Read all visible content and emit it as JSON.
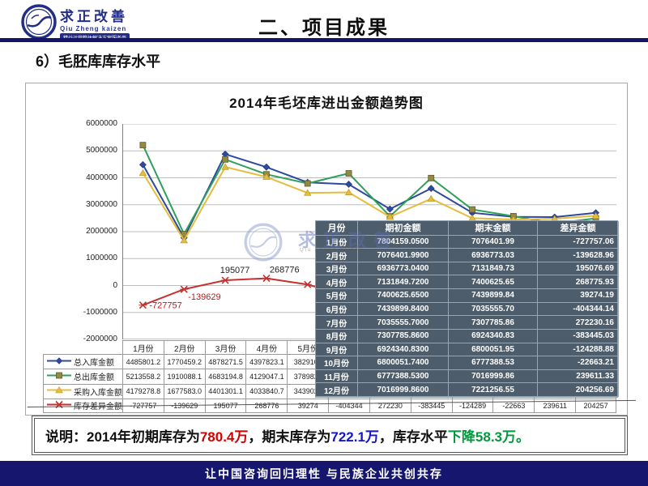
{
  "header": {
    "logo": {
      "brand": "求正改善",
      "pinyin": "Qiu Zheng kaizen",
      "tagline": "精益运营整体解决方案服务商"
    },
    "title": "二、项目成果"
  },
  "section_title": "6）毛胚库库存水平",
  "chart": {
    "title": "2014年毛坯库进出金额趋势图",
    "y_tick_labels": [
      "6000000",
      "5000000",
      "4000000",
      "3000000",
      "2000000",
      "1000000",
      "0",
      "-1000000",
      "-2000000"
    ],
    "point_labels": [
      {
        "text": "-727757",
        "color": "#cc1111"
      },
      {
        "text": "-139629",
        "color": "#cc1111"
      },
      {
        "text": "195077",
        "color": "#222222"
      },
      {
        "text": "268776",
        "color": "#222222"
      }
    ]
  },
  "chart_data": {
    "type": "line",
    "title": "2014年毛坯库进出金额趋势图",
    "categories": [
      "1月份",
      "2月份",
      "3月份",
      "4月份",
      "5月份",
      "6月份",
      "7月份",
      "8月份",
      "9月份",
      "10月份",
      "11月份",
      "12月份"
    ],
    "ylim": [
      -2000000,
      6000000
    ],
    "grid": true,
    "legend_position": "table-left",
    "series": [
      {
        "name": "总入库金额",
        "color": "#2e4a9e",
        "marker": "diamond",
        "values": [
          4485801,
          1770459,
          4878272,
          4397823,
          3829102,
          3760000,
          2840000,
          3607000,
          2700000,
          2550000,
          2540000,
          2700000
        ]
      },
      {
        "name": "总出库金额",
        "color": "#2fa05a",
        "marker": "square",
        "values": [
          5213558,
          1910088,
          4683195,
          4129047,
          3789828,
          4164000,
          2568000,
          3990000,
          2824000,
          2573000,
          2300000,
          2496000
        ]
      },
      {
        "name": "采购入库金额",
        "color": "#e6bc3c",
        "marker": "triangle",
        "values": [
          4179279,
          1677583,
          4401301,
          4033841,
          3439025,
          3460000,
          2550000,
          3220000,
          2500000,
          2450000,
          2480000,
          2590000
        ]
      },
      {
        "name": "库存差异金额",
        "color": "#c53030",
        "marker": "x",
        "values": [
          -727757,
          -139629,
          195077,
          268776,
          39274,
          -404344,
          272230,
          -383445,
          -124289,
          -22663,
          239611,
          204257
        ]
      }
    ],
    "note": "values for months 6-12 of first three series are estimated from line positions (cells hidden behind overlay table)"
  },
  "bottom_table": {
    "months": [
      "1月份",
      "2月份",
      "3月份",
      "4月份",
      "5月份",
      "6月份",
      "7月份",
      "8月份",
      "9月份",
      "10月份",
      "11月份",
      "12月份"
    ],
    "rows": [
      {
        "label": "总入库金额",
        "cells": [
          "4485801.2",
          "1770459.2",
          "4878271.5",
          "4397823.1",
          "3829102",
          "",
          "",
          "",
          "",
          "",
          "",
          ""
        ]
      },
      {
        "label": "总出库金额",
        "cells": [
          "5213558.2",
          "1910088.1",
          "4683194.8",
          "4129047.1",
          "3789828",
          "",
          "",
          "",
          "",
          "",
          "",
          ""
        ]
      },
      {
        "label": "采购入库金额",
        "cells": [
          "4179278.8",
          "1677583.0",
          "4401301.1",
          "4033840.7",
          "3439025",
          "",
          "",
          "",
          "",
          "",
          "",
          ""
        ]
      },
      {
        "label": "库存差异金额",
        "cells": [
          "-727757",
          "-139629",
          "195077",
          "268776",
          "39274",
          "-404344",
          "272230",
          "-383445",
          "-124289",
          "-22663",
          "239611",
          "204257"
        ]
      }
    ]
  },
  "overlay_table": {
    "headers": [
      "月份",
      "期初金额",
      "期末金额",
      "差异金额"
    ],
    "rows": [
      [
        "1月份",
        "7804159.0500",
        "7076401.99",
        "-727757.06"
      ],
      [
        "2月份",
        "7076401.9900",
        "6936773.03",
        "-139628.96"
      ],
      [
        "3月份",
        "6936773.0400",
        "7131849.73",
        "195076.69"
      ],
      [
        "4月份",
        "7131849.7200",
        "7400625.65",
        "268775.93"
      ],
      [
        "5月份",
        "7400625.6500",
        "7439899.84",
        "39274.19"
      ],
      [
        "6月份",
        "7439899.8400",
        "7035555.70",
        "-404344.14"
      ],
      [
        "7月份",
        "7035555.7000",
        "7307785.86",
        "272230.16"
      ],
      [
        "8月份",
        "7307785.8600",
        "6924340.83",
        "-383445.03"
      ],
      [
        "9月份",
        "6924340.8300",
        "6800051.95",
        "-124288.88"
      ],
      [
        "10月份",
        "6800051.7400",
        "6777388.53",
        "-22663.21"
      ],
      [
        "11月份",
        "6777388.5300",
        "7016999.86",
        "239611.33"
      ],
      [
        "12月份",
        "7016999.8600",
        "7221256.55",
        "204256.69"
      ]
    ]
  },
  "watermark": {
    "text": "求正改善",
    "subtext": "Qiu Zheng kaizen"
  },
  "statement": {
    "segments": [
      {
        "text": "说明：2014年初期库存为",
        "color": "#111111"
      },
      {
        "text": "780.4万",
        "color": "#d40000"
      },
      {
        "text": "，期末库存为",
        "color": "#111111"
      },
      {
        "text": "722.1万",
        "color": "#1414cc"
      },
      {
        "text": "，库存水平",
        "color": "#111111"
      },
      {
        "text": "下降58.3万。",
        "color": "#00993d"
      }
    ]
  },
  "footer": {
    "text": "让中国咨询回归理性  与民族企业共创共存"
  },
  "colors": {
    "header_rule": "#141468",
    "footer_bg": "#16166e",
    "overlay_table_bg": "#4e5d6b",
    "series_in": "#2e4a9e",
    "series_out": "#2fa05a",
    "series_purchase": "#e6bc3c",
    "series_diff": "#c53030"
  }
}
